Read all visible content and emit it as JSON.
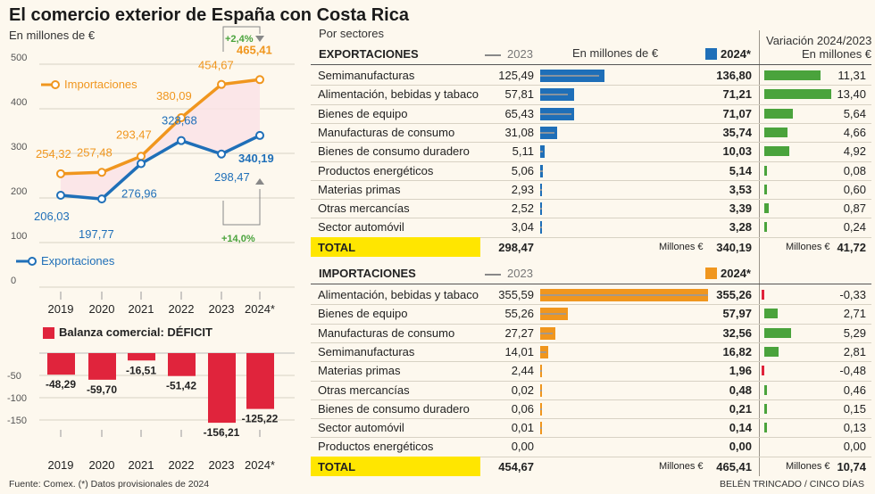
{
  "title": "El comercio exterior de España con Costa Rica",
  "left": {
    "unit": "En millones de €",
    "legend_import": "Importaciones",
    "legend_export": "Exportaciones",
    "change_import": "+2,4%",
    "change_export": "+14,0%",
    "balance_legend": "Balanza comercial: DÉFICIT"
  },
  "right": {
    "por_sectores": "Por sectores",
    "unit_mid": "En millones de €",
    "variacion_title": "Variación 2024/2023",
    "variacion_unit": "En millones €",
    "year_prev": "2023",
    "year_curr": "2024*",
    "total_label": "TOTAL",
    "millones_label": "Millones €",
    "millones_label2": "Millones €"
  },
  "footer": {
    "source": "Fuente: Comex. (*) Datos provisionales de 2024",
    "credit": "BELÉN TRINCADO / CINCO DÍAS"
  },
  "colors": {
    "import": "#f0961e",
    "export": "#1f6fb8",
    "deficit": "#e0243c",
    "positive": "#4aa33c",
    "negative": "#e0243c",
    "total": "#ffe600"
  },
  "chart_data": [
    {
      "type": "line",
      "x": [
        "2019",
        "2020",
        "2021",
        "2022",
        "2023",
        "2024*"
      ],
      "ylim": [
        0,
        500
      ],
      "yticks": [
        "0",
        "100",
        "200",
        "300",
        "400",
        "500"
      ],
      "series": [
        {
          "name": "Importaciones",
          "values": [
            254.32,
            257.48,
            293.47,
            380.09,
            454.67,
            465.41
          ],
          "labels": [
            "254,32",
            "257,48",
            "293,47",
            "380,09",
            "454,67",
            "465,41"
          ]
        },
        {
          "name": "Exportaciones",
          "values": [
            206.03,
            197.77,
            276.96,
            328.68,
            298.47,
            340.19
          ],
          "labels": [
            "206,03",
            "197,77",
            "276,96",
            "328,68",
            "298,47",
            "340,19"
          ]
        }
      ]
    },
    {
      "type": "bar",
      "title": "Balanza comercial: DÉFICIT",
      "categories": [
        "2019",
        "2020",
        "2021",
        "2022",
        "2023",
        "2024*"
      ],
      "values": [
        -48.29,
        -59.7,
        -16.51,
        -51.42,
        -156.21,
        -125.22
      ],
      "labels": [
        "-48,29",
        "-59,70",
        "-16,51",
        "-51,42",
        "-156,21",
        "-125,22"
      ],
      "ylim": [
        -175,
        0
      ],
      "yticks": [
        "-50",
        "-100",
        "-150"
      ]
    },
    {
      "type": "table",
      "title": "EXPORTACIONES",
      "columns": [
        "2023",
        "2024*",
        "Variación 2024/2023"
      ],
      "rows": [
        {
          "sector": "Semimanufacturas",
          "v2023": 125.49,
          "v2024": 136.8,
          "var": 11.31,
          "s2023": "125,49",
          "s2024": "136,80",
          "svar": "11,31"
        },
        {
          "sector": "Alimentación, bebidas y tabaco",
          "v2023": 57.81,
          "v2024": 71.21,
          "var": 13.4,
          "s2023": "57,81",
          "s2024": "71,21",
          "svar": "13,40"
        },
        {
          "sector": "Bienes de equipo",
          "v2023": 65.43,
          "v2024": 71.07,
          "var": 5.64,
          "s2023": "65,43",
          "s2024": "71,07",
          "svar": "5,64"
        },
        {
          "sector": "Manufacturas de consumo",
          "v2023": 31.08,
          "v2024": 35.74,
          "var": 4.66,
          "s2023": "31,08",
          "s2024": "35,74",
          "svar": "4,66"
        },
        {
          "sector": "Bienes de consumo duradero",
          "v2023": 5.11,
          "v2024": 10.03,
          "var": 4.92,
          "s2023": "5,11",
          "s2024": "10,03",
          "svar": "4,92"
        },
        {
          "sector": "Productos energéticos",
          "v2023": 5.06,
          "v2024": 5.14,
          "var": 0.08,
          "s2023": "5,06",
          "s2024": "5,14",
          "svar": "0,08"
        },
        {
          "sector": "Materias primas",
          "v2023": 2.93,
          "v2024": 3.53,
          "var": 0.6,
          "s2023": "2,93",
          "s2024": "3,53",
          "svar": "0,60"
        },
        {
          "sector": "Otras mercancías",
          "v2023": 2.52,
          "v2024": 3.39,
          "var": 0.87,
          "s2023": "2,52",
          "s2024": "3,39",
          "svar": "0,87"
        },
        {
          "sector": "Sector automóvil",
          "v2023": 3.04,
          "v2024": 3.28,
          "var": 0.24,
          "s2023": "3,04",
          "s2024": "3,28",
          "svar": "0,24"
        }
      ],
      "total": {
        "s2023": "298,47",
        "s2024": "340,19",
        "svar": "41,72"
      }
    },
    {
      "type": "table",
      "title": "IMPORTACIONES",
      "columns": [
        "2023",
        "2024*",
        "Variación 2024/2023"
      ],
      "rows": [
        {
          "sector": "Alimentación, bebidas y tabaco",
          "v2023": 355.59,
          "v2024": 355.26,
          "var": -0.33,
          "s2023": "355,59",
          "s2024": "355,26",
          "svar": "-0,33"
        },
        {
          "sector": "Bienes de equipo",
          "v2023": 55.26,
          "v2024": 57.97,
          "var": 2.71,
          "s2023": "55,26",
          "s2024": "57,97",
          "svar": "2,71"
        },
        {
          "sector": "Manufacturas de consumo",
          "v2023": 27.27,
          "v2024": 32.56,
          "var": 5.29,
          "s2023": "27,27",
          "s2024": "32,56",
          "svar": "5,29"
        },
        {
          "sector": "Semimanufacturas",
          "v2023": 14.01,
          "v2024": 16.82,
          "var": 2.81,
          "s2023": "14,01",
          "s2024": "16,82",
          "svar": "2,81"
        },
        {
          "sector": "Materias primas",
          "v2023": 2.44,
          "v2024": 1.96,
          "var": -0.48,
          "s2023": "2,44",
          "s2024": "1,96",
          "svar": "-0,48"
        },
        {
          "sector": "Otras mercancías",
          "v2023": 0.02,
          "v2024": 0.48,
          "var": 0.46,
          "s2023": "0,02",
          "s2024": "0,48",
          "svar": "0,46"
        },
        {
          "sector": "Bienes de consumo duradero",
          "v2023": 0.06,
          "v2024": 0.21,
          "var": 0.15,
          "s2023": "0,06",
          "s2024": "0,21",
          "svar": "0,15"
        },
        {
          "sector": "Sector automóvil",
          "v2023": 0.01,
          "v2024": 0.14,
          "var": 0.13,
          "s2023": "0,01",
          "s2024": "0,14",
          "svar": "0,13"
        },
        {
          "sector": "Productos energéticos",
          "v2023": 0.0,
          "v2024": 0.0,
          "var": 0.0,
          "s2023": "0,00",
          "s2024": "0,00",
          "svar": "0,00"
        }
      ],
      "total": {
        "s2023": "454,67",
        "s2024": "465,41",
        "svar": "10,74"
      }
    }
  ]
}
